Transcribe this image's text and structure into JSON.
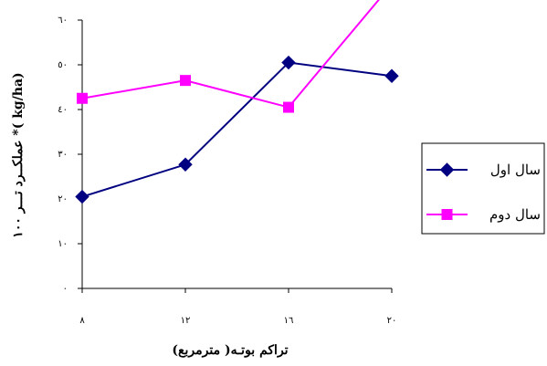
{
  "chart_data": {
    "type": "line",
    "categories": [
      "٨",
      "١٢",
      "١٦",
      "٢٠"
    ],
    "yticks": [
      "٠",
      "١٠",
      "٢٠",
      "٣٠",
      "٤٠",
      "٥٠",
      "٦٠"
    ],
    "ylim": [
      0,
      60
    ],
    "xlabel": "تراکم بوتـه( مترمربع)",
    "ylabel": "عملکــرد تـــر ۱۰۰ *( kg/ha)",
    "grid": false,
    "legend_position": "right",
    "series": [
      {
        "name": "سال اول",
        "values": [
          20.5,
          27.7,
          50.5,
          47.5
        ],
        "color": "#000080",
        "marker": "diamond"
      },
      {
        "name": "سال دوم",
        "values": [
          42.5,
          46.5,
          40.5,
          68
        ],
        "color": "#FF00FF",
        "marker": "square"
      }
    ]
  }
}
